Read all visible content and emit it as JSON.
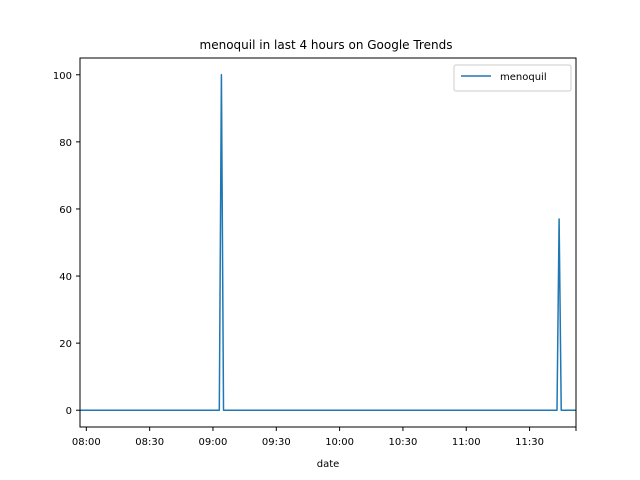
{
  "chart_data": {
    "type": "line",
    "title": "menoquil in last 4 hours on Google Trends",
    "xlabel": "date",
    "ylabel": "",
    "x_ticks": [
      "08:00",
      "08:30",
      "09:00",
      "09:30",
      "10:00",
      "10:30",
      "11:00",
      "11:30"
    ],
    "y_ticks": [
      "0",
      "20",
      "40",
      "60",
      "80",
      "100"
    ],
    "ylim": [
      -5,
      105
    ],
    "xlim": [
      "07:57",
      "11:52"
    ],
    "grid": false,
    "legend_position": "top-right",
    "series": [
      {
        "name": "menoquil",
        "color": "#1f77b4",
        "x": [
          "07:57",
          "09:03",
          "09:04",
          "09:05",
          "11:43",
          "11:44",
          "11:45",
          "11:52"
        ],
        "y": [
          0,
          0,
          100,
          0,
          0,
          57,
          0,
          0
        ]
      }
    ]
  }
}
